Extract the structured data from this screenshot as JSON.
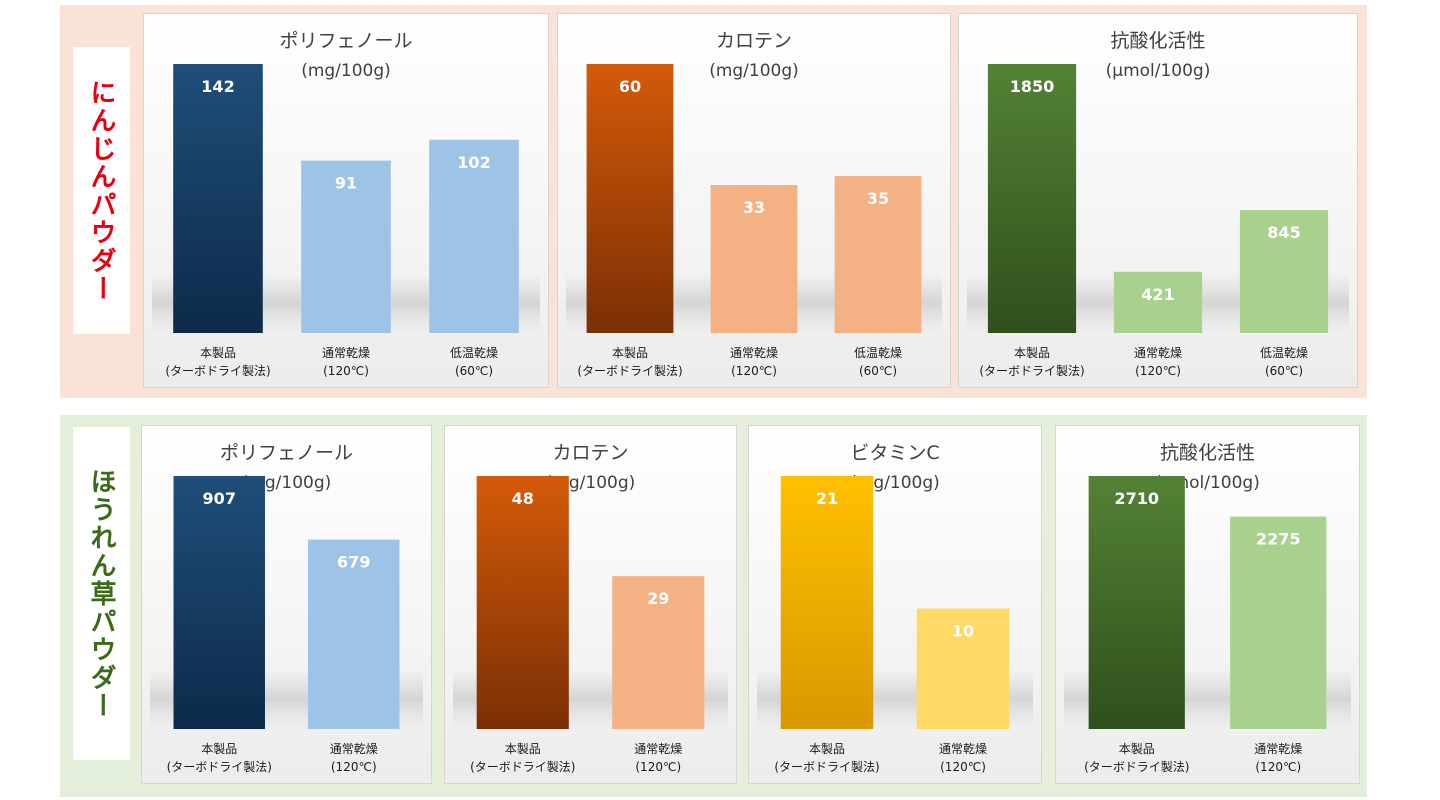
{
  "sections": [
    {
      "label": "にんじんパウダー",
      "label_color": "#e60012",
      "charts": [
        {
          "title": "ポリフェノール",
          "unit": "(mg/100g)",
          "theme": "blue",
          "chart_data": {
            "type": "bar",
            "title": "ポリフェノール",
            "ylabel": "(mg/100g)",
            "categories": [
              [
                "本製品",
                "(ターボドライ製法)"
              ],
              [
                "通常乾燥",
                "(120℃)"
              ],
              [
                "低温乾燥",
                "(60℃)"
              ]
            ],
            "values": [
              142,
              91,
              102
            ]
          }
        },
        {
          "title": "カロテン",
          "unit": "(mg/100g)",
          "theme": "orange",
          "chart_data": {
            "type": "bar",
            "title": "カロテン",
            "ylabel": "(mg/100g)",
            "categories": [
              [
                "本製品",
                "(ターボドライ製法)"
              ],
              [
                "通常乾燥",
                "(120℃)"
              ],
              [
                "低温乾燥",
                "(60℃)"
              ]
            ],
            "values": [
              60,
              33,
              35
            ]
          }
        },
        {
          "title": "抗酸化活性",
          "unit": "(μmol/100g)",
          "theme": "green",
          "chart_data": {
            "type": "bar",
            "title": "抗酸化活性",
            "ylabel": "(μmol/100g)",
            "categories": [
              [
                "本製品",
                "(ターボドライ製法)"
              ],
              [
                "通常乾燥",
                "(120℃)"
              ],
              [
                "低温乾燥",
                "(60℃)"
              ]
            ],
            "values": [
              1850,
              421,
              845
            ]
          }
        }
      ]
    },
    {
      "label": "ほうれん草パウダー",
      "label_color": "#3a6a1c",
      "charts": [
        {
          "title": "ポリフェノール",
          "unit": "(mg/100g)",
          "theme": "blue",
          "chart_data": {
            "type": "bar",
            "title": "ポリフェノール",
            "ylabel": "(mg/100g)",
            "categories": [
              [
                "本製品",
                "(ターボドライ製法)"
              ],
              [
                "通常乾燥",
                "(120℃)"
              ]
            ],
            "values": [
              907,
              679
            ]
          }
        },
        {
          "title": "カロテン",
          "unit": "(mg/100g)",
          "theme": "orange",
          "chart_data": {
            "type": "bar",
            "title": "カロテン",
            "ylabel": "(mg/100g)",
            "categories": [
              [
                "本製品",
                "(ターボドライ製法)"
              ],
              [
                "通常乾燥",
                "(120℃)"
              ]
            ],
            "values": [
              48,
              29
            ]
          }
        },
        {
          "title": "ビタミンC",
          "unit": "(mg/100g)",
          "theme": "yellow",
          "chart_data": {
            "type": "bar",
            "title": "ビタミンC",
            "ylabel": "(mg/100g)",
            "categories": [
              [
                "本製品",
                "(ターボドライ製法)"
              ],
              [
                "通常乾燥",
                "(120℃)"
              ]
            ],
            "values": [
              21,
              10
            ]
          }
        },
        {
          "title": "抗酸化活性",
          "unit": "(μmol/100g)",
          "theme": "green",
          "chart_data": {
            "type": "bar",
            "title": "抗酸化活性",
            "ylabel": "(μmol/100g)",
            "categories": [
              [
                "本製品",
                "(ターボドライ製法)"
              ],
              [
                "通常乾燥",
                "(120℃)"
              ]
            ],
            "values": [
              2710,
              2275
            ]
          }
        }
      ]
    }
  ],
  "themes": {
    "blue": {
      "primary_top": "#1f4e79",
      "primary_bottom": "#0d2a4a",
      "secondary": "#9dc3e6"
    },
    "orange": {
      "primary_top": "#d45a09",
      "primary_bottom": "#7a2f05",
      "secondary": "#f4b183"
    },
    "green": {
      "primary_top": "#548235",
      "primary_bottom": "#2f4f1c",
      "secondary": "#a9d18e"
    },
    "yellow": {
      "primary_top": "#ffc000",
      "primary_bottom": "#d89800",
      "secondary": "#ffd966"
    }
  }
}
